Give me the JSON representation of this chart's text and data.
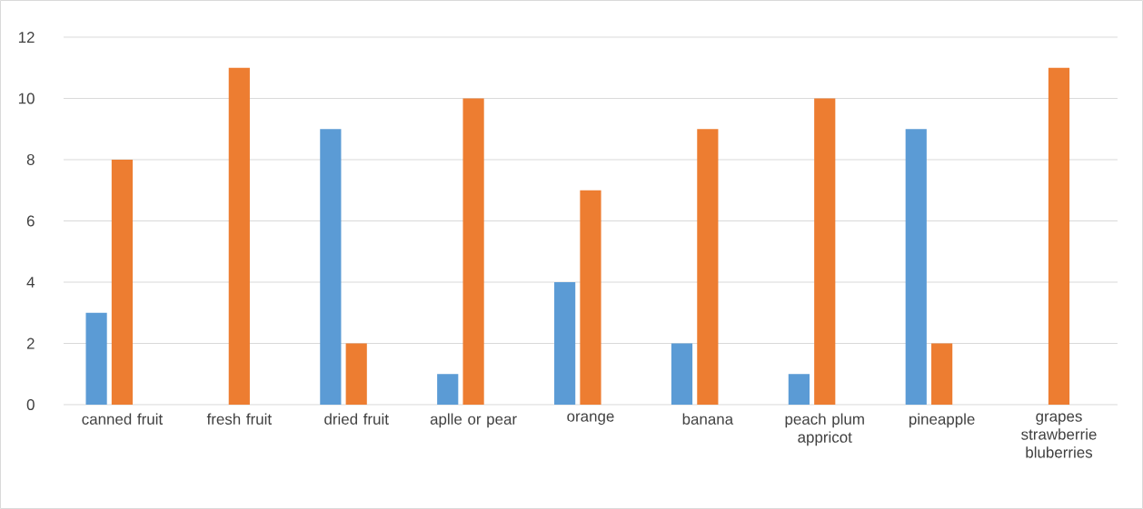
{
  "chart_data": {
    "type": "bar",
    "categories": [
      "canned fruit",
      "fresh fruit",
      "dried fruit",
      "aplle or pear",
      "orange",
      "banana",
      "peach plum appricot",
      "pineapple",
      "grapes strawberrie bluberries"
    ],
    "series": [
      {
        "color": "#5b9bd5",
        "values": [
          3,
          0,
          9,
          1,
          4,
          2,
          1,
          9,
          0
        ]
      },
      {
        "color": "#ed7d31",
        "values": [
          8,
          11,
          2,
          10,
          7,
          9,
          10,
          2,
          11
        ]
      }
    ],
    "ylim": [
      0,
      12
    ],
    "yticks": [
      0,
      2,
      4,
      6,
      8,
      10,
      12
    ],
    "grid": "y"
  }
}
